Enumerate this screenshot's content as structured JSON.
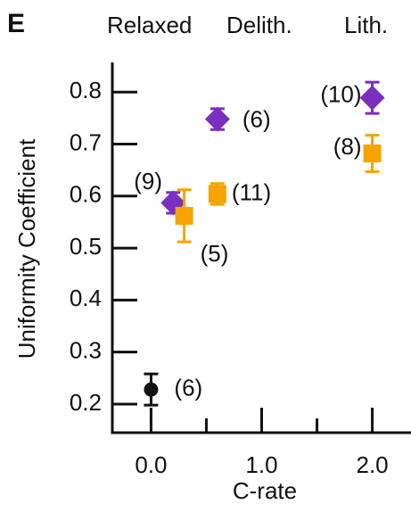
{
  "chart_data": {
    "type": "scatter",
    "panel_label": "E",
    "x_label": "C-rate",
    "y_label": "Uniformity Coefficient",
    "xlim": [
      -0.35,
      2.35
    ],
    "ylim": [
      0.145,
      0.857
    ],
    "xticks": [
      {
        "value": 0,
        "label": "0.0"
      },
      {
        "value": 1,
        "label": "1.0"
      },
      {
        "value": 2,
        "label": "2.0"
      }
    ],
    "xminorticks": [
      0.5,
      1.5
    ],
    "yticks": [
      0.2,
      0.3,
      0.4,
      0.5,
      0.6,
      0.7,
      0.8
    ],
    "series": [
      {
        "name": "Relaxed",
        "color": "#111111",
        "marker": "circle",
        "x": [
          0
        ],
        "values": [
          0.228
        ],
        "errors": [
          0.03
        ],
        "labels": [
          "(6)"
        ]
      },
      {
        "name": "Delith.",
        "color": "#7a2fc0",
        "marker": "diamond",
        "x": [
          0.2,
          0.6,
          2.0
        ],
        "values": [
          0.587,
          0.748,
          0.789
        ],
        "errors": [
          0.02,
          0.02,
          0.03
        ],
        "labels": [
          "(9)",
          "(6)",
          "(10)"
        ]
      },
      {
        "name": "Lith.",
        "color": "#f5a400",
        "marker": "square",
        "x": [
          0.3,
          0.6,
          2.0
        ],
        "values": [
          0.562,
          0.604,
          0.682
        ],
        "errors": [
          0.05,
          0.02,
          0.035
        ],
        "labels": [
          "(5)",
          "(11)",
          "(8)"
        ]
      }
    ]
  }
}
